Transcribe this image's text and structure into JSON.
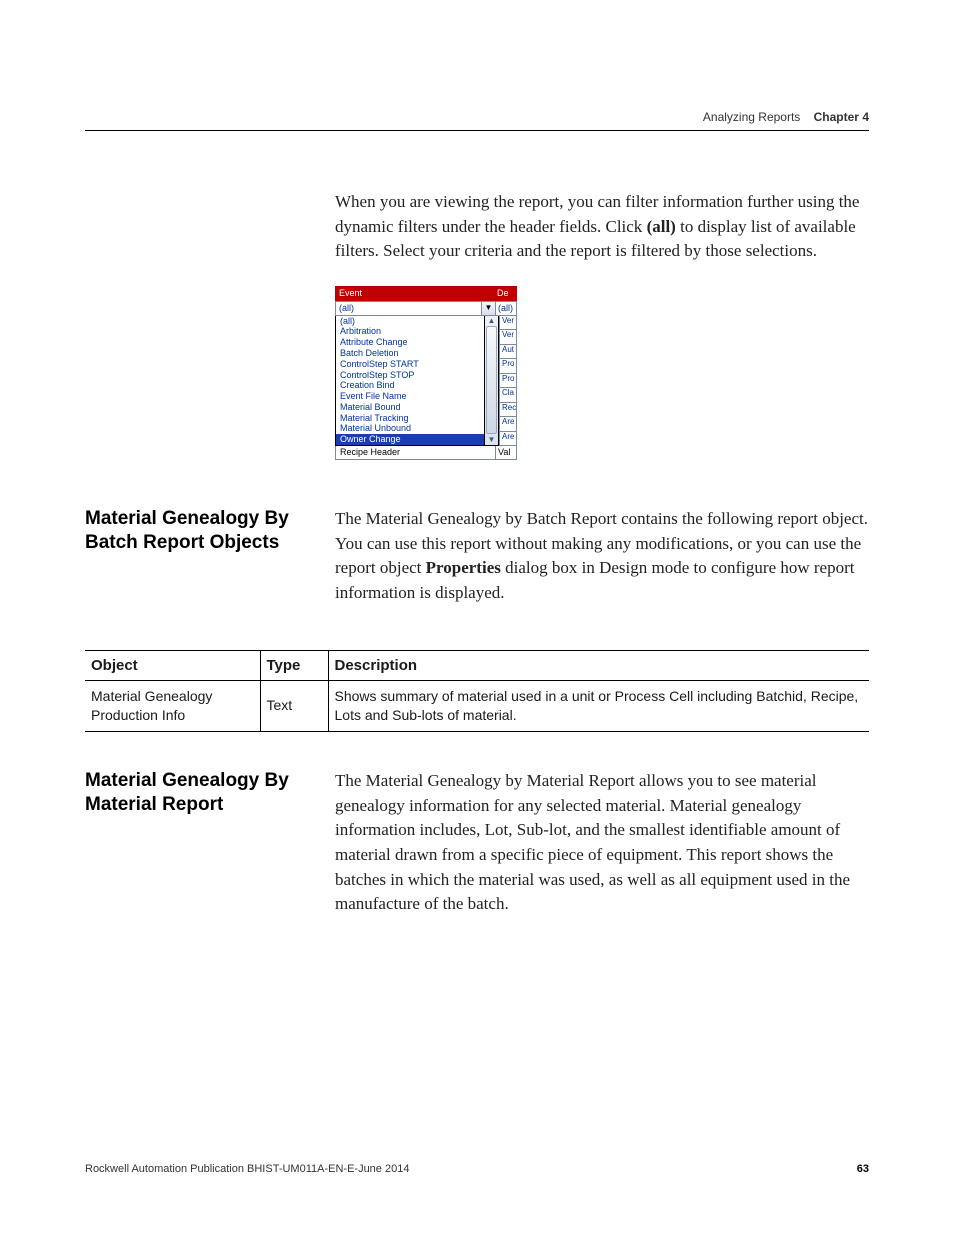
{
  "runningHead": {
    "light": "Analyzing Reports",
    "boldLabel": "Chapter 4"
  },
  "intro": {
    "before_all": "When you are viewing the report, you can filter information further using the dynamic filters under the header fields. Click ",
    "all_word": "(all)",
    "after_all": " to display list of available filters. Select your criteria and the report is filtered by those selections."
  },
  "filterWidget": {
    "headerLeft": "Event",
    "headerRightAbbrev": "De",
    "selected": "(all)",
    "rightCellText": "(all)",
    "items": [
      {
        "label": "(all)",
        "selected": false
      },
      {
        "label": "Arbitration",
        "selected": false
      },
      {
        "label": "Attribute Change",
        "selected": false
      },
      {
        "label": "Batch Deletion",
        "selected": false
      },
      {
        "label": "ControlStep START",
        "selected": false
      },
      {
        "label": "ControlStep STOP",
        "selected": false
      },
      {
        "label": "Creation Bind",
        "selected": false
      },
      {
        "label": "Event File Name",
        "selected": false
      },
      {
        "label": "Material Bound",
        "selected": false
      },
      {
        "label": "Material Tracking",
        "selected": false
      },
      {
        "label": "Material Unbound",
        "selected": false
      },
      {
        "label": "Owner Change",
        "selected": true
      }
    ],
    "sideCells": [
      "Ver",
      "Ver",
      "Aut",
      "Pro",
      "Pro",
      "Cla",
      "Rec",
      "Are",
      "Are"
    ],
    "footerLeft": "Recipe Header",
    "footerRight": "Val"
  },
  "section1": {
    "heading": "Material Genealogy By Batch Report Objects",
    "para_before_bold": "The Material Genealogy by Batch Report contains the following report object. You can use this report without making any modifications, or you can use the report object ",
    "bold_word": "Properties",
    "para_after_bold": " dialog box in Design mode to configure how report information is displayed."
  },
  "table": {
    "headers": [
      "Object",
      "Type",
      "Description"
    ],
    "row": {
      "object": "Material Genealogy Production Info",
      "type": "Text",
      "description": "Shows summary of material used in a unit or Process Cell including Batchid, Recipe, Lots and Sub-lots of material."
    }
  },
  "section2": {
    "heading": "Material Genealogy By Material Report",
    "para": "The Material Genealogy by Material Report allows you to see material genealogy information for any selected material. Material genealogy information includes, Lot, Sub-lot, and the smallest identifiable amount of material drawn from a specific piece of equipment. This report shows the batches in which the material was used, as well as all equipment used in the manufacture of the batch."
  },
  "footer": {
    "publication": "Rockwell Automation Publication BHIST-UM011A-EN-E-June 2014",
    "pageNumber": "63"
  },
  "colors": {
    "headerRed": "#c00000",
    "linkBlue": "#003399",
    "selectionBlue": "#1a3db0",
    "rule": "#000000"
  }
}
